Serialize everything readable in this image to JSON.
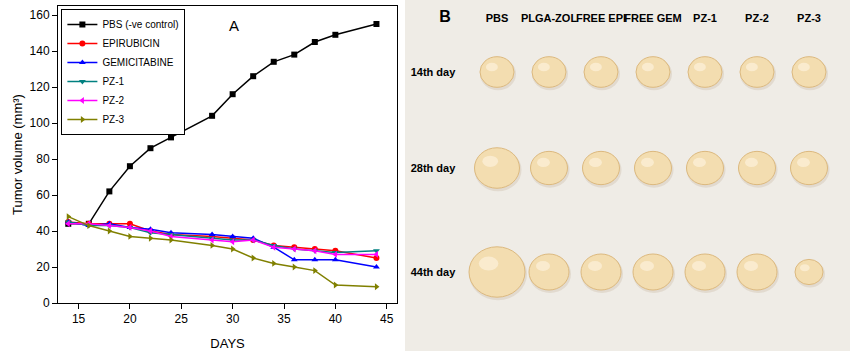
{
  "chart_data": {
    "type": "line",
    "annotations": [
      "A"
    ],
    "x_label": "DAYS",
    "y_label": "Tumor volume (mm³)",
    "x": [
      14,
      16,
      18,
      20,
      22,
      24,
      28,
      30,
      32,
      34,
      36,
      38,
      40,
      44
    ],
    "series": [
      {
        "name": "PBS (-ve control)",
        "color": "#000000",
        "marker": "square",
        "values": [
          44,
          44,
          62,
          76,
          86,
          92,
          104,
          116,
          126,
          134,
          138,
          145,
          149,
          155
        ]
      },
      {
        "name": "EPIRUBICIN",
        "color": "#ff0000",
        "marker": "circle",
        "values": [
          45,
          44,
          44,
          44,
          40,
          38,
          37,
          36,
          35,
          32,
          31,
          30,
          29,
          25
        ]
      },
      {
        "name": "GEMICITABINE",
        "color": "#0000ff",
        "marker": "triangle-up",
        "values": [
          45,
          43,
          44,
          42,
          41,
          39,
          38,
          37,
          36,
          31,
          24,
          24,
          24,
          20
        ]
      },
      {
        "name": "PZ-1",
        "color": "#008080",
        "marker": "triangle-down",
        "values": [
          45,
          43,
          43,
          42,
          39,
          38,
          36,
          35,
          35,
          32,
          30,
          29,
          28,
          29
        ]
      },
      {
        "name": "PZ-2",
        "color": "#ff00ff",
        "marker": "triangle-left",
        "values": [
          44,
          44,
          43,
          42,
          40,
          37,
          35,
          34,
          35,
          31,
          30,
          29,
          27,
          27
        ]
      },
      {
        "name": "PZ-3",
        "color": "#808000",
        "marker": "triangle-right",
        "values": [
          48,
          43,
          40,
          37,
          36,
          35,
          32,
          30,
          25,
          22,
          20,
          18,
          10,
          9
        ]
      }
    ],
    "xlim": [
      13,
      46
    ],
    "xticks": [
      15,
      20,
      25,
      30,
      35,
      40,
      45
    ],
    "ylim": [
      0,
      165
    ],
    "yticks": [
      0,
      20,
      40,
      60,
      80,
      100,
      120,
      140,
      160
    ],
    "grid": false,
    "legend": "upper left"
  },
  "photo_panel": {
    "label": "B",
    "columns": [
      "PBS",
      "PLGA-ZOL",
      "FREE EPI",
      "FREE GEM",
      "PZ-1",
      "PZ-2",
      "PZ-3"
    ],
    "rows": [
      "14th day",
      "28th day",
      "44th day"
    ]
  }
}
